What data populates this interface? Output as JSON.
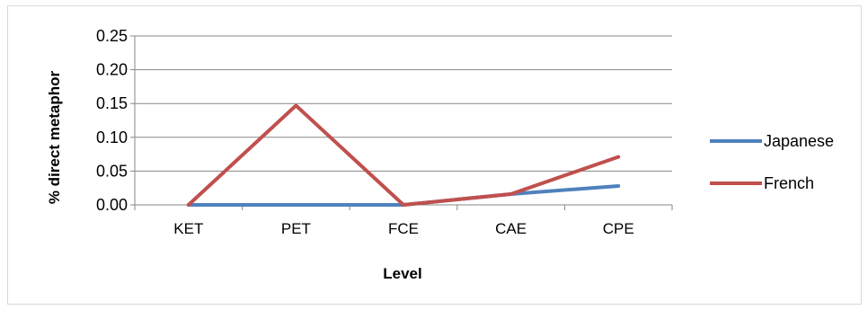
{
  "chart_data": {
    "type": "line",
    "title": "",
    "xlabel": "Level",
    "ylabel": "% direct metaphor",
    "categories": [
      "KET",
      "PET",
      "FCE",
      "CAE",
      "CPE"
    ],
    "ylim": [
      0,
      0.25
    ],
    "yticks": [
      "0.00",
      "0.05",
      "0.10",
      "0.15",
      "0.20",
      "0.25"
    ],
    "grid": true,
    "legend_position": "right",
    "series": [
      {
        "name": "Japanese",
        "color": "#4f81bd",
        "values": [
          0.0,
          0.0,
          0.0,
          0.016,
          0.028
        ]
      },
      {
        "name": "French",
        "color": "#c0504d",
        "values": [
          0.0,
          0.147,
          0.0,
          0.016,
          0.071
        ]
      }
    ]
  }
}
